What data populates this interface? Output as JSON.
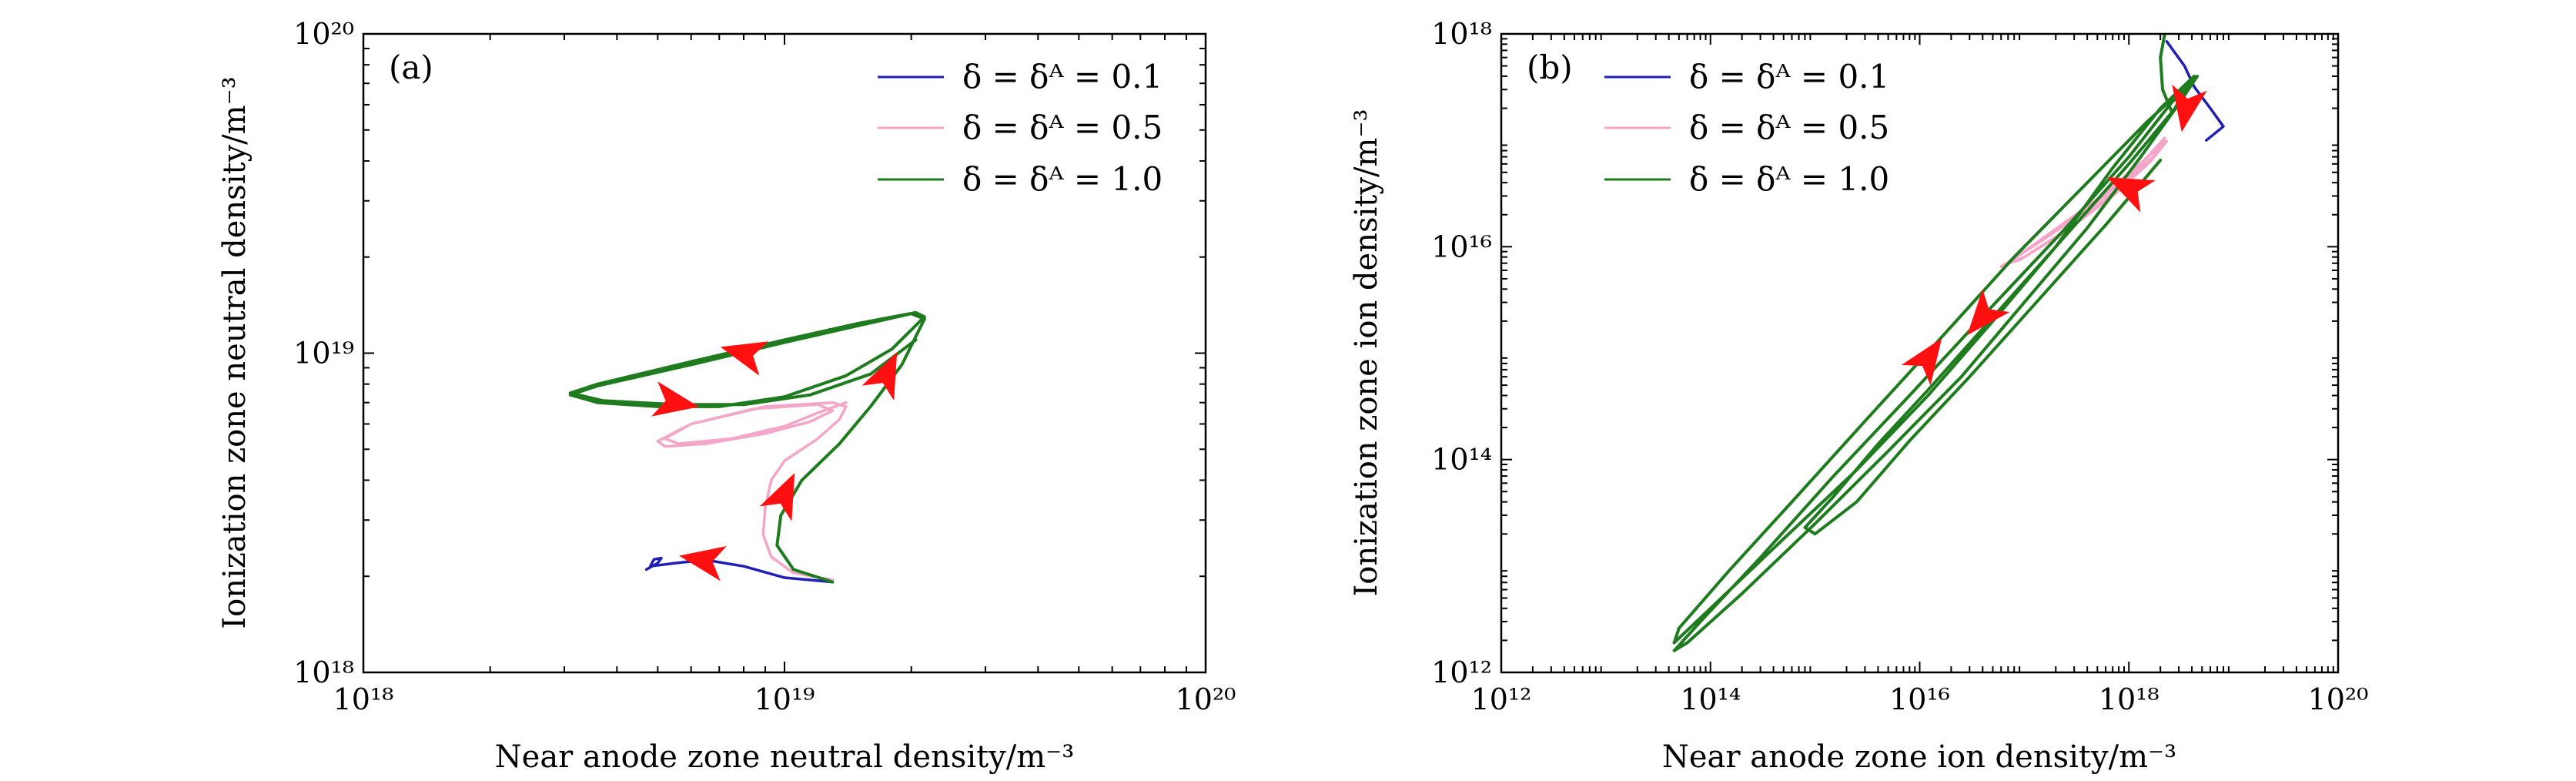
{
  "chart_data": [
    {
      "type": "line",
      "panel_label": "(a)",
      "xlabel": "Near anode zone neutral density/m⁻³",
      "ylabel": "Ionization zone neutral density/m⁻³",
      "x_scale": "log",
      "y_scale": "log",
      "xlim": [
        1e+18,
        1e+20
      ],
      "ylim": [
        1e+18,
        1e+20
      ],
      "x_ticks": [
        1e+18,
        1e+19,
        1e+20
      ],
      "y_ticks": [
        1e+18,
        1e+19,
        1e+20
      ],
      "x_tick_labels": [
        "10¹⁸",
        "10¹⁹",
        "10²⁰"
      ],
      "y_tick_labels": [
        "10¹⁸",
        "10¹⁹",
        "10²⁰"
      ],
      "grid": false,
      "legend_position": "top-right",
      "series": [
        {
          "name": "δ = δᴬ = 0.1",
          "color": "#1f1fb4",
          "x": [
            4.7e+18,
            5e+18,
            5.1e+18,
            4.9e+18,
            4.8e+18,
            5.5e+18,
            6.5e+18,
            8e+18,
            1e+19,
            1.3e+19
          ],
          "y": [
            2.1e+18,
            2.2e+18,
            2.28e+18,
            2.26e+18,
            2.15e+18,
            2.2e+18,
            2.25e+18,
            2.15e+18,
            1.98e+18,
            1.92e+18
          ]
        },
        {
          "name": "δ = δᴬ = 0.5",
          "color": "#f4a6c9",
          "x": [
            1.3e+19,
            1.05e+19,
            9.3e+18,
            8.9e+18,
            9e+18,
            9.3e+18,
            1e+19,
            1.2e+19,
            1.35e+19,
            1.4e+19,
            1.3e+19,
            9e+18,
            6e+18,
            5e+18,
            5.2e+18,
            6.5e+18,
            9e+18,
            1.15e+19,
            1.3e+19,
            1.2e+19,
            8.5e+18,
            6e+18,
            5.2e+18,
            5.6e+18,
            7.5e+18,
            1e+19,
            1.2e+19,
            1.4e+19
          ],
          "y": [
            1.95e+18,
            2.05e+18,
            2.3e+18,
            2.7e+18,
            3.3e+18,
            4e+18,
            4.6e+18,
            5.4e+18,
            6.2e+18,
            6.8e+18,
            7e+18,
            6.8e+18,
            6e+18,
            5.3e+18,
            5.1e+18,
            5.2e+18,
            5.6e+18,
            6.1e+18,
            6.6e+18,
            6.9e+18,
            6.7e+18,
            6e+18,
            5.4e+18,
            5.2e+18,
            5.4e+18,
            5.9e+18,
            6.5e+18,
            7e+18
          ]
        },
        {
          "name": "δ = δᴬ = 1.0",
          "color": "#1e7b1e",
          "x": [
            1.3e+19,
            1.05e+19,
            9.6e+18,
            9.8e+18,
            1.1e+19,
            1.35e+19,
            1.6e+19,
            1.9e+19,
            2.15e+19,
            2e+19,
            1.5e+19,
            1e+19,
            6e+18,
            3.6e+18,
            3.1e+18,
            3.6e+18,
            5e+18,
            7e+18,
            1e+19,
            1.4e+19,
            1.8e+19,
            2.15e+19,
            2.05e+19,
            1.5e+19,
            1e+19,
            6e+18,
            3.6e+18,
            3.1e+18,
            3.7e+18,
            5.5e+18,
            8e+18,
            1.15e+19,
            1.6e+19,
            2.05e+19
          ],
          "y": [
            1.92e+18,
            2.1e+18,
            2.5e+18,
            3.1e+18,
            4e+18,
            5.2e+18,
            6.8e+18,
            9.2e+18,
            1.28e+19,
            1.33e+19,
            1.22e+19,
            1.08e+19,
            9.2e+18,
            7.9e+18,
            7.4e+18,
            7e+18,
            6.8e+18,
            6.8e+18,
            7.3e+18,
            8.5e+18,
            1.03e+19,
            1.3e+19,
            1.34e+19,
            1.24e+19,
            1.1e+19,
            9.4e+18,
            8e+18,
            7.5e+18,
            7.1e+18,
            6.9e+18,
            6.9e+18,
            7.4e+18,
            8.6e+18,
            1.1e+19
          ]
        }
      ],
      "arrows": [
        {
          "x": 6.4e+18,
          "y": 2.25e+18,
          "dir": -170
        },
        {
          "x": 1e+19,
          "y": 3.6e+18,
          "dir": -65
        },
        {
          "x": 1.75e+19,
          "y": 8.6e+18,
          "dir": -65
        },
        {
          "x": 8e+18,
          "y": 1e+19,
          "dir": -165
        },
        {
          "x": 5.5e+18,
          "y": 7e+18,
          "dir": 10
        }
      ]
    },
    {
      "type": "line",
      "panel_label": "(b)",
      "xlabel": "Near anode zone ion density/m⁻³",
      "ylabel": "Ionization zone ion density/m⁻³",
      "x_scale": "log",
      "y_scale": "log",
      "xlim": [
        1000000000000.0,
        1e+20
      ],
      "ylim": [
        1000000000000.0,
        1e+18
      ],
      "x_ticks": [
        1000000000000.0,
        100000000000000.0,
        1e+16,
        1e+18,
        1e+20
      ],
      "y_ticks": [
        1000000000000.0,
        100000000000000.0,
        1e+16,
        1e+18
      ],
      "x_tick_labels": [
        "10¹²",
        "10¹⁴",
        "10¹⁶",
        "10¹⁸",
        "10²⁰"
      ],
      "y_tick_labels": [
        "10¹²",
        "10¹⁴",
        "10¹⁶",
        "10¹⁸"
      ],
      "grid": false,
      "legend_position": "top-left",
      "series": [
        {
          "name": "δ = δᴬ = 0.1",
          "color": "#1f1fb4",
          "x": [
            2.3e+18,
            2.8e+18,
            3.4e+18,
            4.2e+18,
            6e+18,
            8e+18,
            5.5e+18
          ],
          "y": [
            8.5e+17,
            6.5e+17,
            5e+17,
            3.2e+17,
            2e+17,
            1.35e+17,
            1e+17
          ],
          "segment_closed": false
        },
        {
          "name": "δ = δᴬ = 0.5",
          "color": "#f4a6c9",
          "x": [
            2.2e+18,
            1.2e+18,
            4e+17,
            1.2e+17,
            6e+16,
            1e+17,
            3e+17,
            8e+17,
            1.7e+18,
            2.2e+18,
            1.4e+18,
            5e+17,
            1.5e+17,
            7e+16,
            9e+16,
            2.5e+17,
            7e+17,
            1.6e+18,
            2.3e+18
          ],
          "y": [
            1e+17,
            5.5e+16,
            2.2e+16,
            1e+16,
            6500000000000000.0,
            8000000000000000.0,
            1.6e+16,
            3.6e+16,
            7e+16,
            1.05e+17,
            6.5e+16,
            2.8e+16,
            1.2e+16,
            7000000000000000.0,
            7500000000000000.0,
            1.4e+16,
            3e+16,
            6.3e+16,
            9.8e+16
          ]
        },
        {
          "name": "δ = δᴬ = 1.0",
          "color": "#1e7b1e",
          "x": [
            2.2e+18,
            2e+18,
            2.1e+18,
            2.6e+18,
            3.8e+18,
            2.5e+18,
            1e+18,
            2.5e+17,
            5e+16,
            8000000000000000.0,
            1500000000000000.0,
            300000000000000.0,
            80000000000000.0,
            45000000000000.0,
            60000000000000.0,
            200000000000000.0,
            1000000000000000.0,
            5000000000000000.0,
            2.5e+16,
            1e+17,
            4e+17,
            1.3e+18,
            3e+18,
            4.5e+18,
            3.5e+18,
            1.5e+18,
            4e+17,
            8e+16,
            1.5e+16,
            3000000000000000.0,
            600000000000000.0,
            150000000000000.0,
            50000000000000.0,
            45000000000000.0,
            100000000000000.0,
            500000000000000.0,
            2500000000000000.0,
            1.2e+16,
            5e+16,
            2e+17,
            7e+17,
            2e+18,
            4.2e+18,
            3e+18,
            1e+18,
            2e+17,
            4e+16,
            1.2e+16,
            4000000000000000.0,
            1500000000000000.0,
            800000000000000.0,
            1000000000000000.0,
            2500000000000000.0,
            8000000000000000.0,
            3e+16,
            1.5e+17,
            6e+17,
            2e+18
          ],
          "y": [
            1e+18,
            6e+17,
            3e+17,
            1.8e+17,
            3.5e+17,
            2.2e+17,
            7e+16,
            1.5e+16,
            2800000000000000.0,
            400000000000000.0,
            70000000000000.0,
            12000000000000.0,
            3000000000000.0,
            1600000000000.0,
            1900000000000.0,
            5500000000000.0,
            25000000000000.0,
            120000000000000.0,
            600000000000000.0,
            3000000000000000.0,
            1.5e+16,
            7e+16,
            2.2e+17,
            4e+17,
            3.2e+17,
            1.5e+17,
            4e+16,
            8000000000000000.0,
            1300000000000000.0,
            230000000000000.0,
            40000000000000.0,
            9000000000000.0,
            2600000000000.0,
            1900000000000.0,
            4000000000000.0,
            18000000000000.0,
            80000000000000.0,
            400000000000000.0,
            2000000000000000.0,
            1e+16,
            5.5e+16,
            2e+17,
            4e+17,
            2.2e+17,
            6e+16,
            1e+16,
            1700000000000000.0,
            450000000000000.0,
            140000000000000.0,
            45000000000000.0,
            23000000000000.0,
            20000000000000.0,
            40000000000000.0,
            150000000000000.0,
            600000000000000.0,
            3500000000000000.0,
            1.6e+16,
            6.5e+16
          ]
        }
      ],
      "arrows": [
        {
          "x": 1.2e+16,
          "y": 900000000000000.0,
          "dir": -55
        },
        {
          "x": 4e+16,
          "y": 2200000000000000.0,
          "dir": 130
        },
        {
          "x": 1e+18,
          "y": 3.6e+16,
          "dir": -155
        },
        {
          "x": 3.5e+18,
          "y": 2e+17,
          "dir": 100
        }
      ]
    }
  ]
}
